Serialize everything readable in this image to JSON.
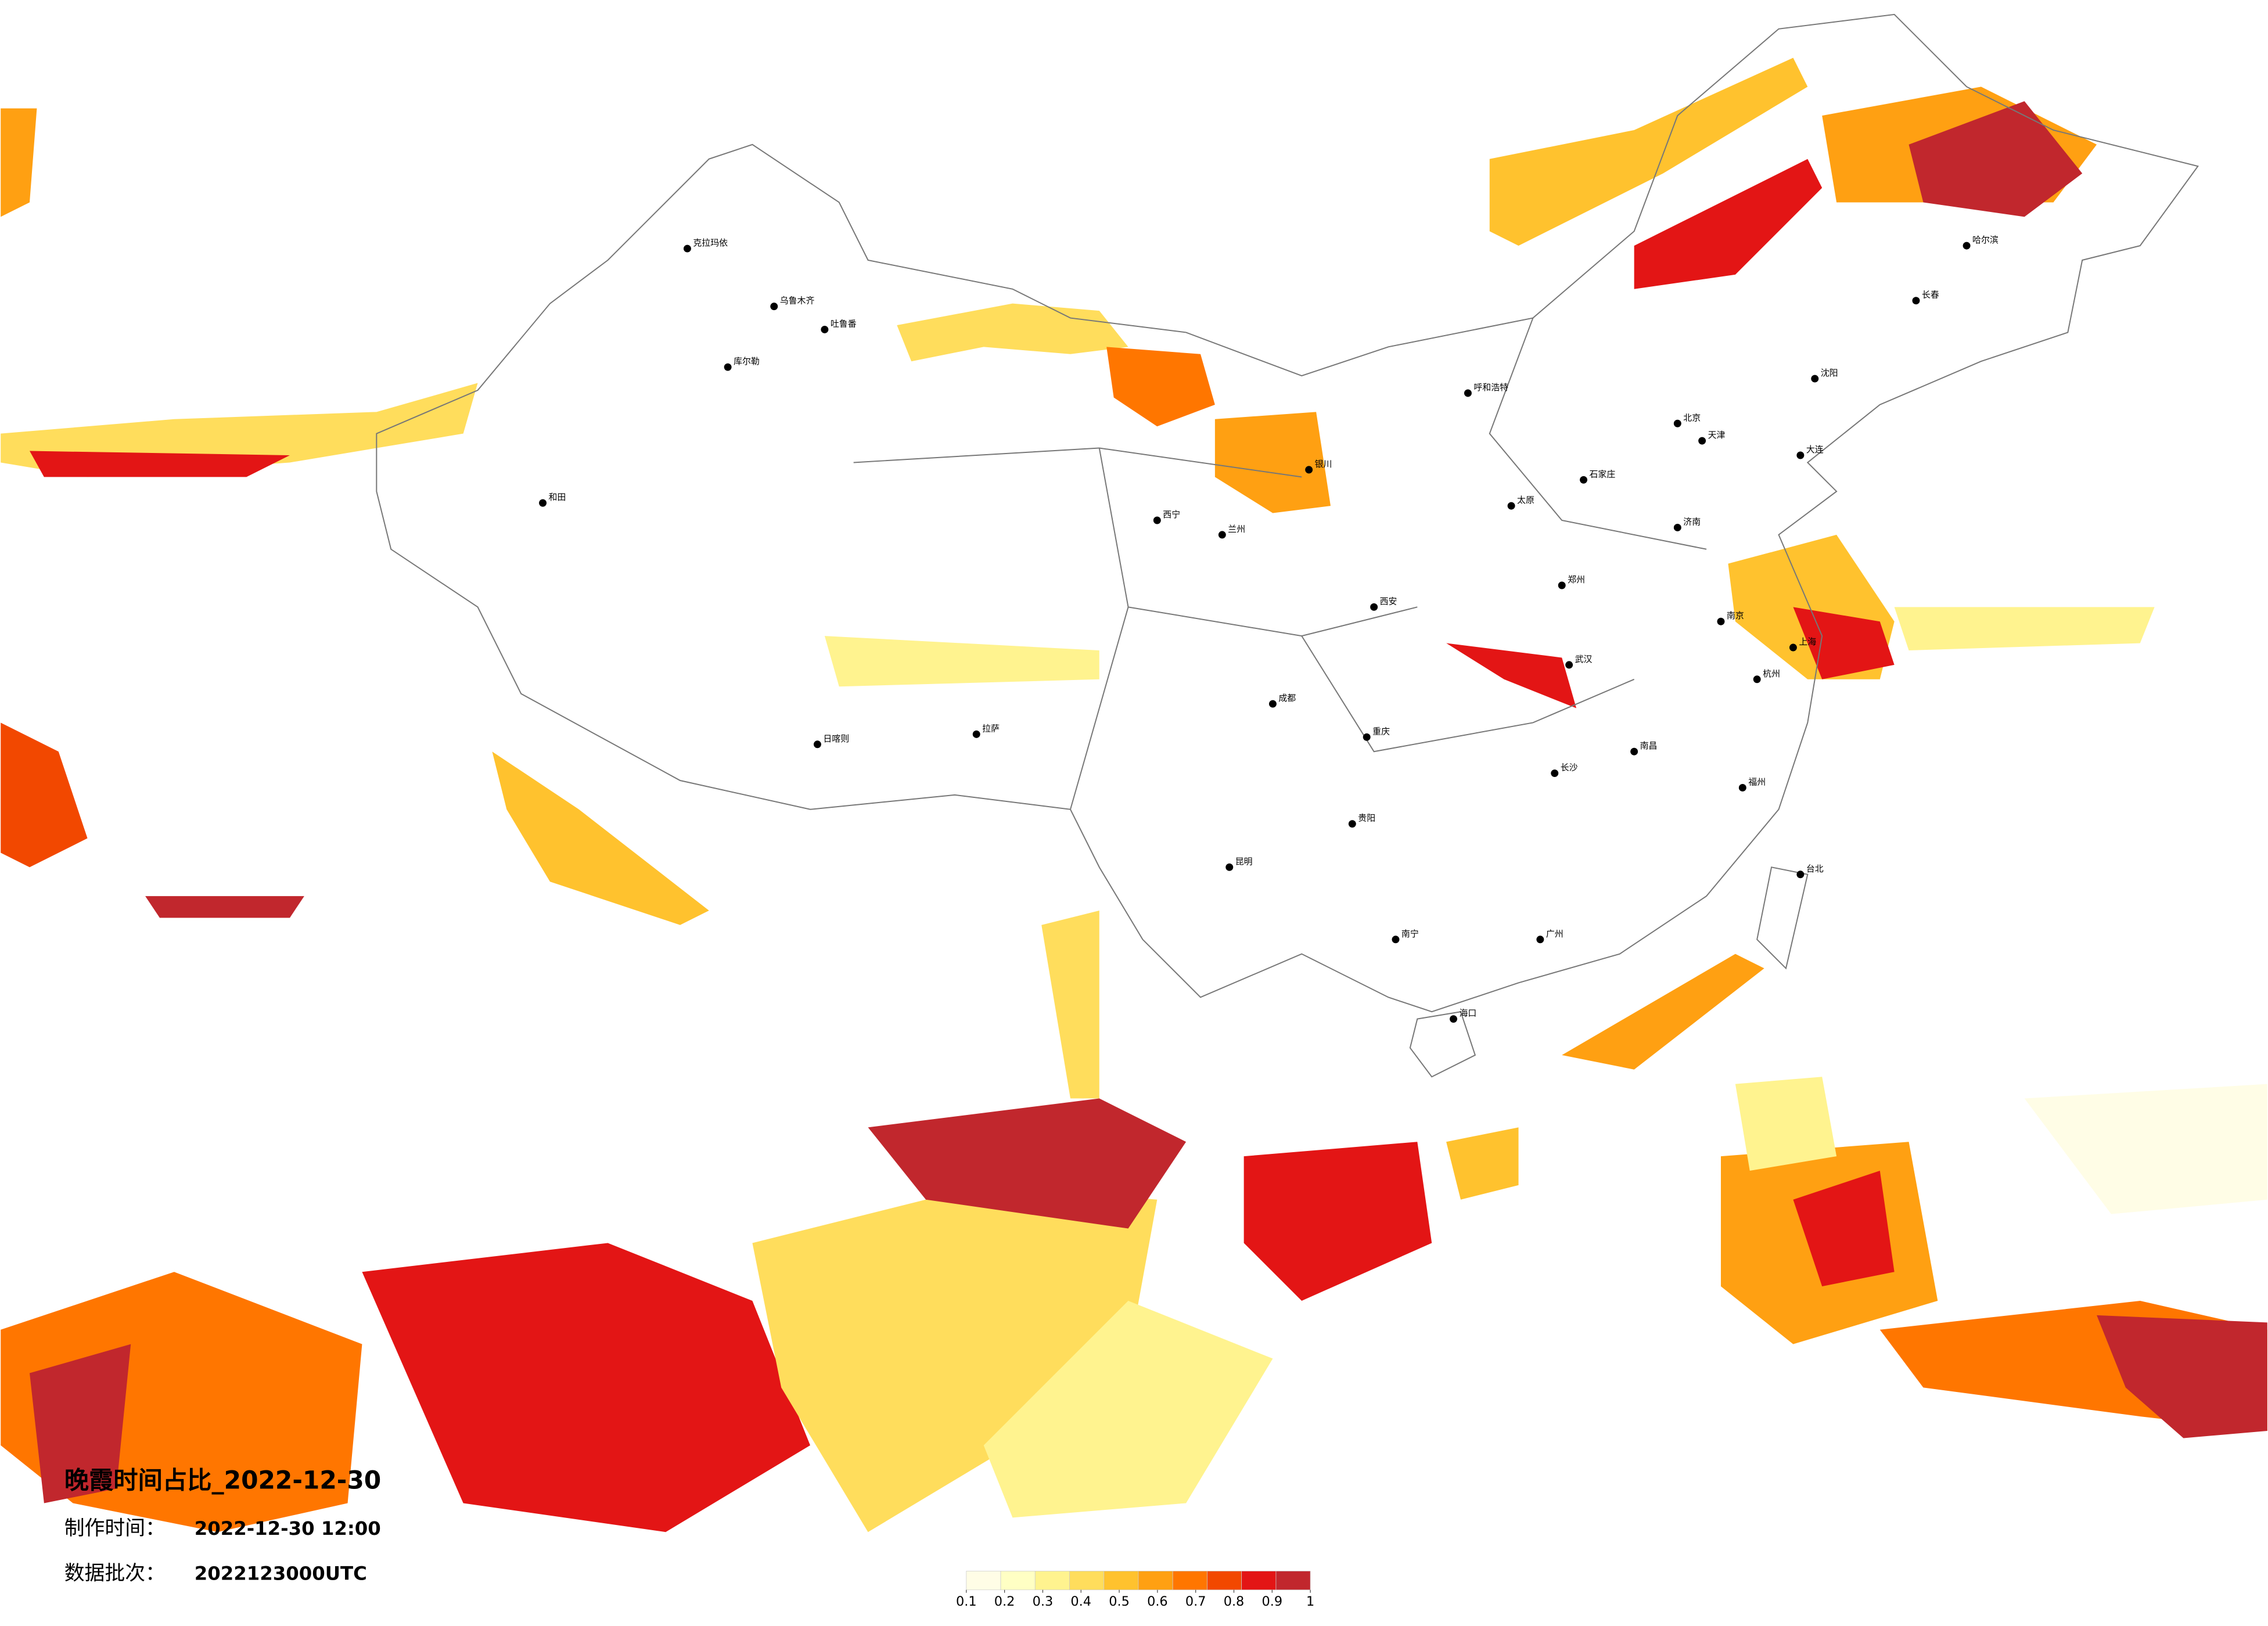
{
  "title": "晚霞时间占比_2022-12-30",
  "production_time": {
    "label": "制作时间：",
    "value": "2022-12-30 12:00"
  },
  "data_batch": {
    "label": "数据批次：",
    "value": "2022123000UTC"
  },
  "legend": {
    "range": [
      0.1,
      1
    ],
    "ticks": [
      0.1,
      0.2,
      0.3,
      0.4,
      0.5,
      0.6,
      0.7,
      0.8,
      0.9,
      1
    ],
    "colors": [
      "#fffde6",
      "#ffffc4",
      "#fff38f",
      "#ffdd5c",
      "#ffc22e",
      "#ffa012",
      "#ff7600",
      "#f24800",
      "#e31515",
      "#c1272d"
    ]
  },
  "cities": [
    "克拉玛依",
    "乌鲁木齐",
    "吐鲁番",
    "库尔勒",
    "和田",
    "拉萨",
    "日喀则",
    "西宁",
    "兰州",
    "银川",
    "呼和浩特",
    "北京",
    "天津",
    "石家庄",
    "太原",
    "哈尔滨",
    "长春",
    "沈阳",
    "大连",
    "济南",
    "郑州",
    "西安",
    "成都",
    "重庆",
    "武汉",
    "南京",
    "上海",
    "杭州",
    "南昌",
    "长沙",
    "贵阳",
    "昆明",
    "南宁",
    "广州",
    "福州",
    "海口",
    "台北"
  ]
}
